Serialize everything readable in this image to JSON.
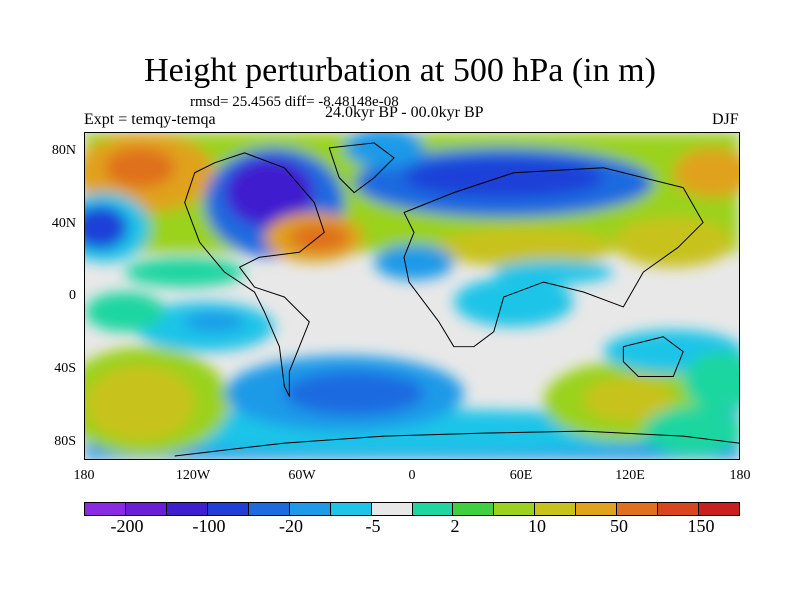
{
  "title": "Height perturbation at 500 hPa (in m)",
  "stats": "rmsd= 25.4565 diff= -8.48148e-08",
  "experiment": "Expt = temqy-temqa",
  "period": "24.0kyr BP - 00.0kyr BP",
  "season": "DJF",
  "map": {
    "lat_labels": [
      "80N",
      "40N",
      "0",
      "40S",
      "80S"
    ],
    "lon_labels": [
      "180",
      "120W",
      "60W",
      "0",
      "60E",
      "120E",
      "180"
    ]
  },
  "colorbar": {
    "colors": [
      "#8a2be2",
      "#6a1fd6",
      "#3f1fcf",
      "#1f3fd8",
      "#1e6be0",
      "#1f9ae8",
      "#1fc4e8",
      "#e8e8e8",
      "#1fd6a0",
      "#3fcf3f",
      "#9ad21f",
      "#c8c21f",
      "#e0a21f",
      "#e0701f",
      "#d8451f",
      "#c81f1f"
    ],
    "labels": [
      "-200",
      "-100",
      "-20",
      "-5",
      "2",
      "10",
      "50",
      "150"
    ]
  }
}
